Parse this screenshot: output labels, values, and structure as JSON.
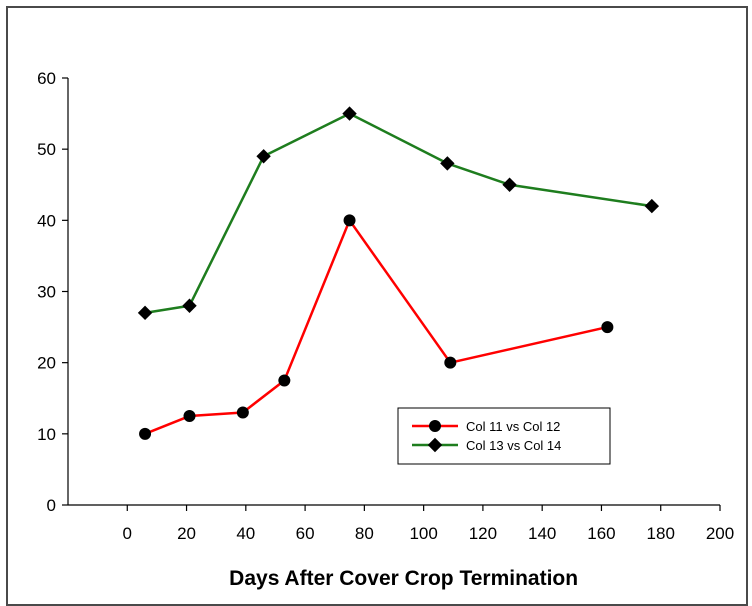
{
  "chart_data": {
    "type": "line",
    "xlabel": "Days After Cover Crop Termination",
    "ylabel": "",
    "xlim": [
      -20,
      200
    ],
    "ylim": [
      0,
      60
    ],
    "xticks": [
      0,
      20,
      40,
      60,
      80,
      100,
      120,
      140,
      160,
      180,
      200
    ],
    "yticks": [
      0,
      10,
      20,
      30,
      40,
      50,
      60
    ],
    "grid": false,
    "legend_position": "lower-right",
    "series": [
      {
        "name": "Col 11 vs Col 12",
        "color": "#ff0000",
        "marker": "circle",
        "x": [
          6,
          21,
          39,
          53,
          75,
          109,
          162
        ],
        "y": [
          10,
          12.5,
          13,
          17.5,
          40,
          20,
          25
        ]
      },
      {
        "name": "Col 13 vs Col 14",
        "color": "#1e7d1e",
        "marker": "diamond",
        "x": [
          6,
          21,
          46,
          75,
          108,
          129,
          177
        ],
        "y": [
          27,
          28,
          49,
          55,
          48,
          45,
          42
        ]
      }
    ]
  }
}
